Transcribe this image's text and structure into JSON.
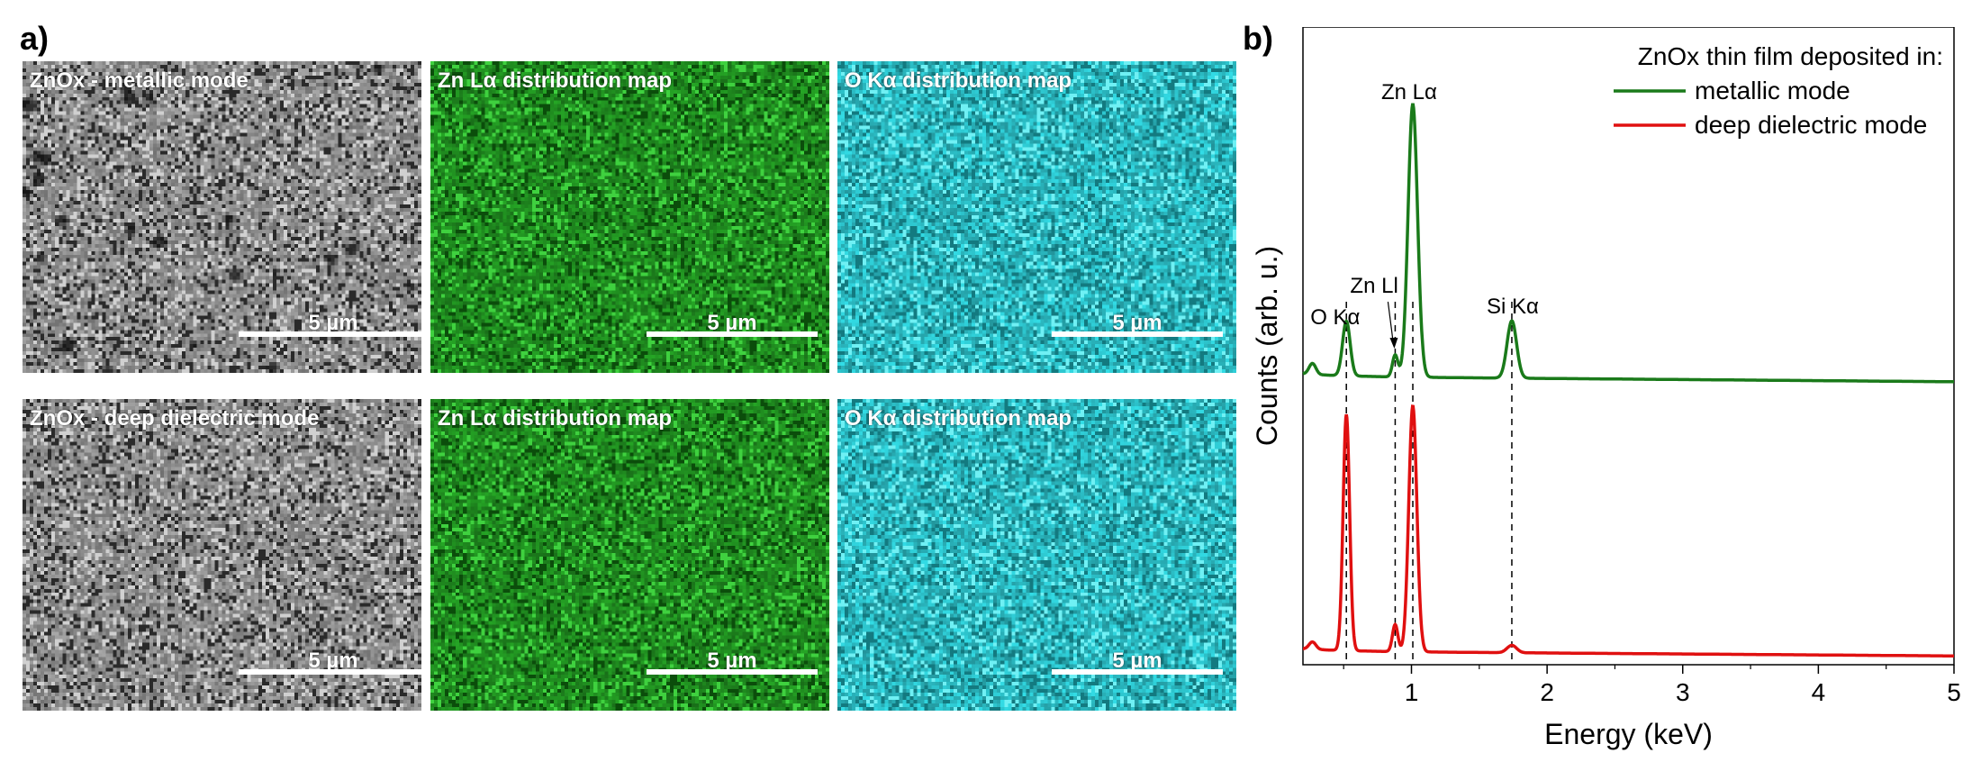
{
  "panel_a": {
    "label": "a)",
    "tiles": [
      {
        "title": "ZnOx - metallic mode",
        "scale": "5 µm",
        "kind": "sem-metallic"
      },
      {
        "title": "Zn Lα distribution map",
        "scale": "5 µm",
        "kind": "zn"
      },
      {
        "title": "O Kα distribution map",
        "scale": "5 µm",
        "kind": "o"
      },
      {
        "title": "ZnOx - deep dielectric mode",
        "scale": "5 µm",
        "kind": "sem-dielectric"
      },
      {
        "title": "Zn Lα distribution map",
        "scale": "5 µm",
        "kind": "zn"
      },
      {
        "title": "O Kα distribution map",
        "scale": "5 µm",
        "kind": "o"
      }
    ],
    "colors": {
      "zn": "#1f8a1f",
      "o": "#2ab8c0",
      "sem": "#8c8c8c"
    }
  },
  "panel_b": {
    "label": "b)"
  },
  "chart_data": {
    "type": "line",
    "title": "",
    "xlabel": "Energy (keV)",
    "ylabel": "Counts (arb. u.)",
    "xlim": [
      0.2,
      5
    ],
    "xticks": [
      "1",
      "2",
      "3",
      "4",
      "5"
    ],
    "xtick_values": [
      1,
      2,
      3,
      4,
      5
    ],
    "legend": {
      "title": "ZnOx thin film deposited in:",
      "placement": "top-right",
      "entries": [
        {
          "name": "metallic mode",
          "color": "#1a7a1a"
        },
        {
          "name": "deep dielectric mode",
          "color": "#e01010"
        }
      ]
    },
    "annotations": [
      {
        "text": "O Kα",
        "x": 0.52
      },
      {
        "text": "Zn Ll",
        "x": 0.88
      },
      {
        "text": "Zn Lα",
        "x": 1.01
      },
      {
        "text": "Si Kα",
        "x": 1.74
      }
    ],
    "dashed_lines_x": [
      0.52,
      0.88,
      1.01,
      1.74
    ],
    "series": [
      {
        "name": "metallic mode",
        "color": "#1a7a1a",
        "baseline": 0.5,
        "peaks": [
          {
            "x": 0.27,
            "height": 0.04,
            "width": 0.025
          },
          {
            "x": 0.52,
            "height": 0.2,
            "width": 0.028
          },
          {
            "x": 0.88,
            "height": 0.08,
            "width": 0.02
          },
          {
            "x": 1.01,
            "height": 1.0,
            "width": 0.035
          },
          {
            "x": 1.74,
            "height": 0.21,
            "width": 0.035
          }
        ]
      },
      {
        "name": "deep dielectric mode",
        "color": "#e01010",
        "baseline": 0.03,
        "peaks": [
          {
            "x": 0.27,
            "height": 0.03,
            "width": 0.025
          },
          {
            "x": 0.52,
            "height": 0.96,
            "width": 0.024
          },
          {
            "x": 0.88,
            "height": 0.11,
            "width": 0.02
          },
          {
            "x": 1.01,
            "height": 1.0,
            "width": 0.03
          },
          {
            "x": 1.74,
            "height": 0.03,
            "width": 0.035
          }
        ]
      }
    ]
  }
}
